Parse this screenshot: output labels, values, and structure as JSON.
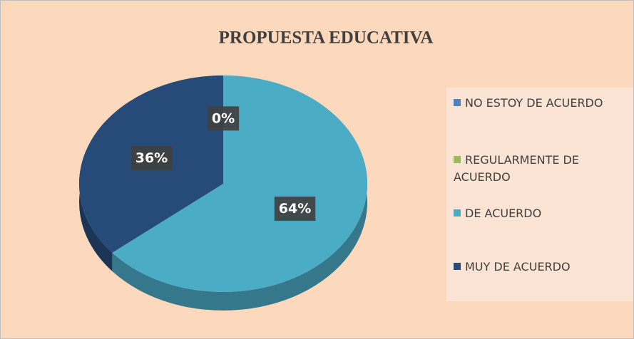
{
  "chart_data": {
    "type": "pie",
    "title": "PROPUESTA EDUCATIVA",
    "categories": [
      "NO ESTOY DE ACUERDO",
      "REGULARMENTE DE ACUERDO",
      "DE ACUERDO",
      "MUY DE ACUERDO"
    ],
    "values": [
      0,
      0,
      64,
      36
    ],
    "value_labels": [
      "0%",
      null,
      "64%",
      "36%"
    ],
    "colors": [
      "#4f81bd",
      "#9bbb59",
      "#4bacc6",
      "#264b79"
    ],
    "legend": "right"
  }
}
